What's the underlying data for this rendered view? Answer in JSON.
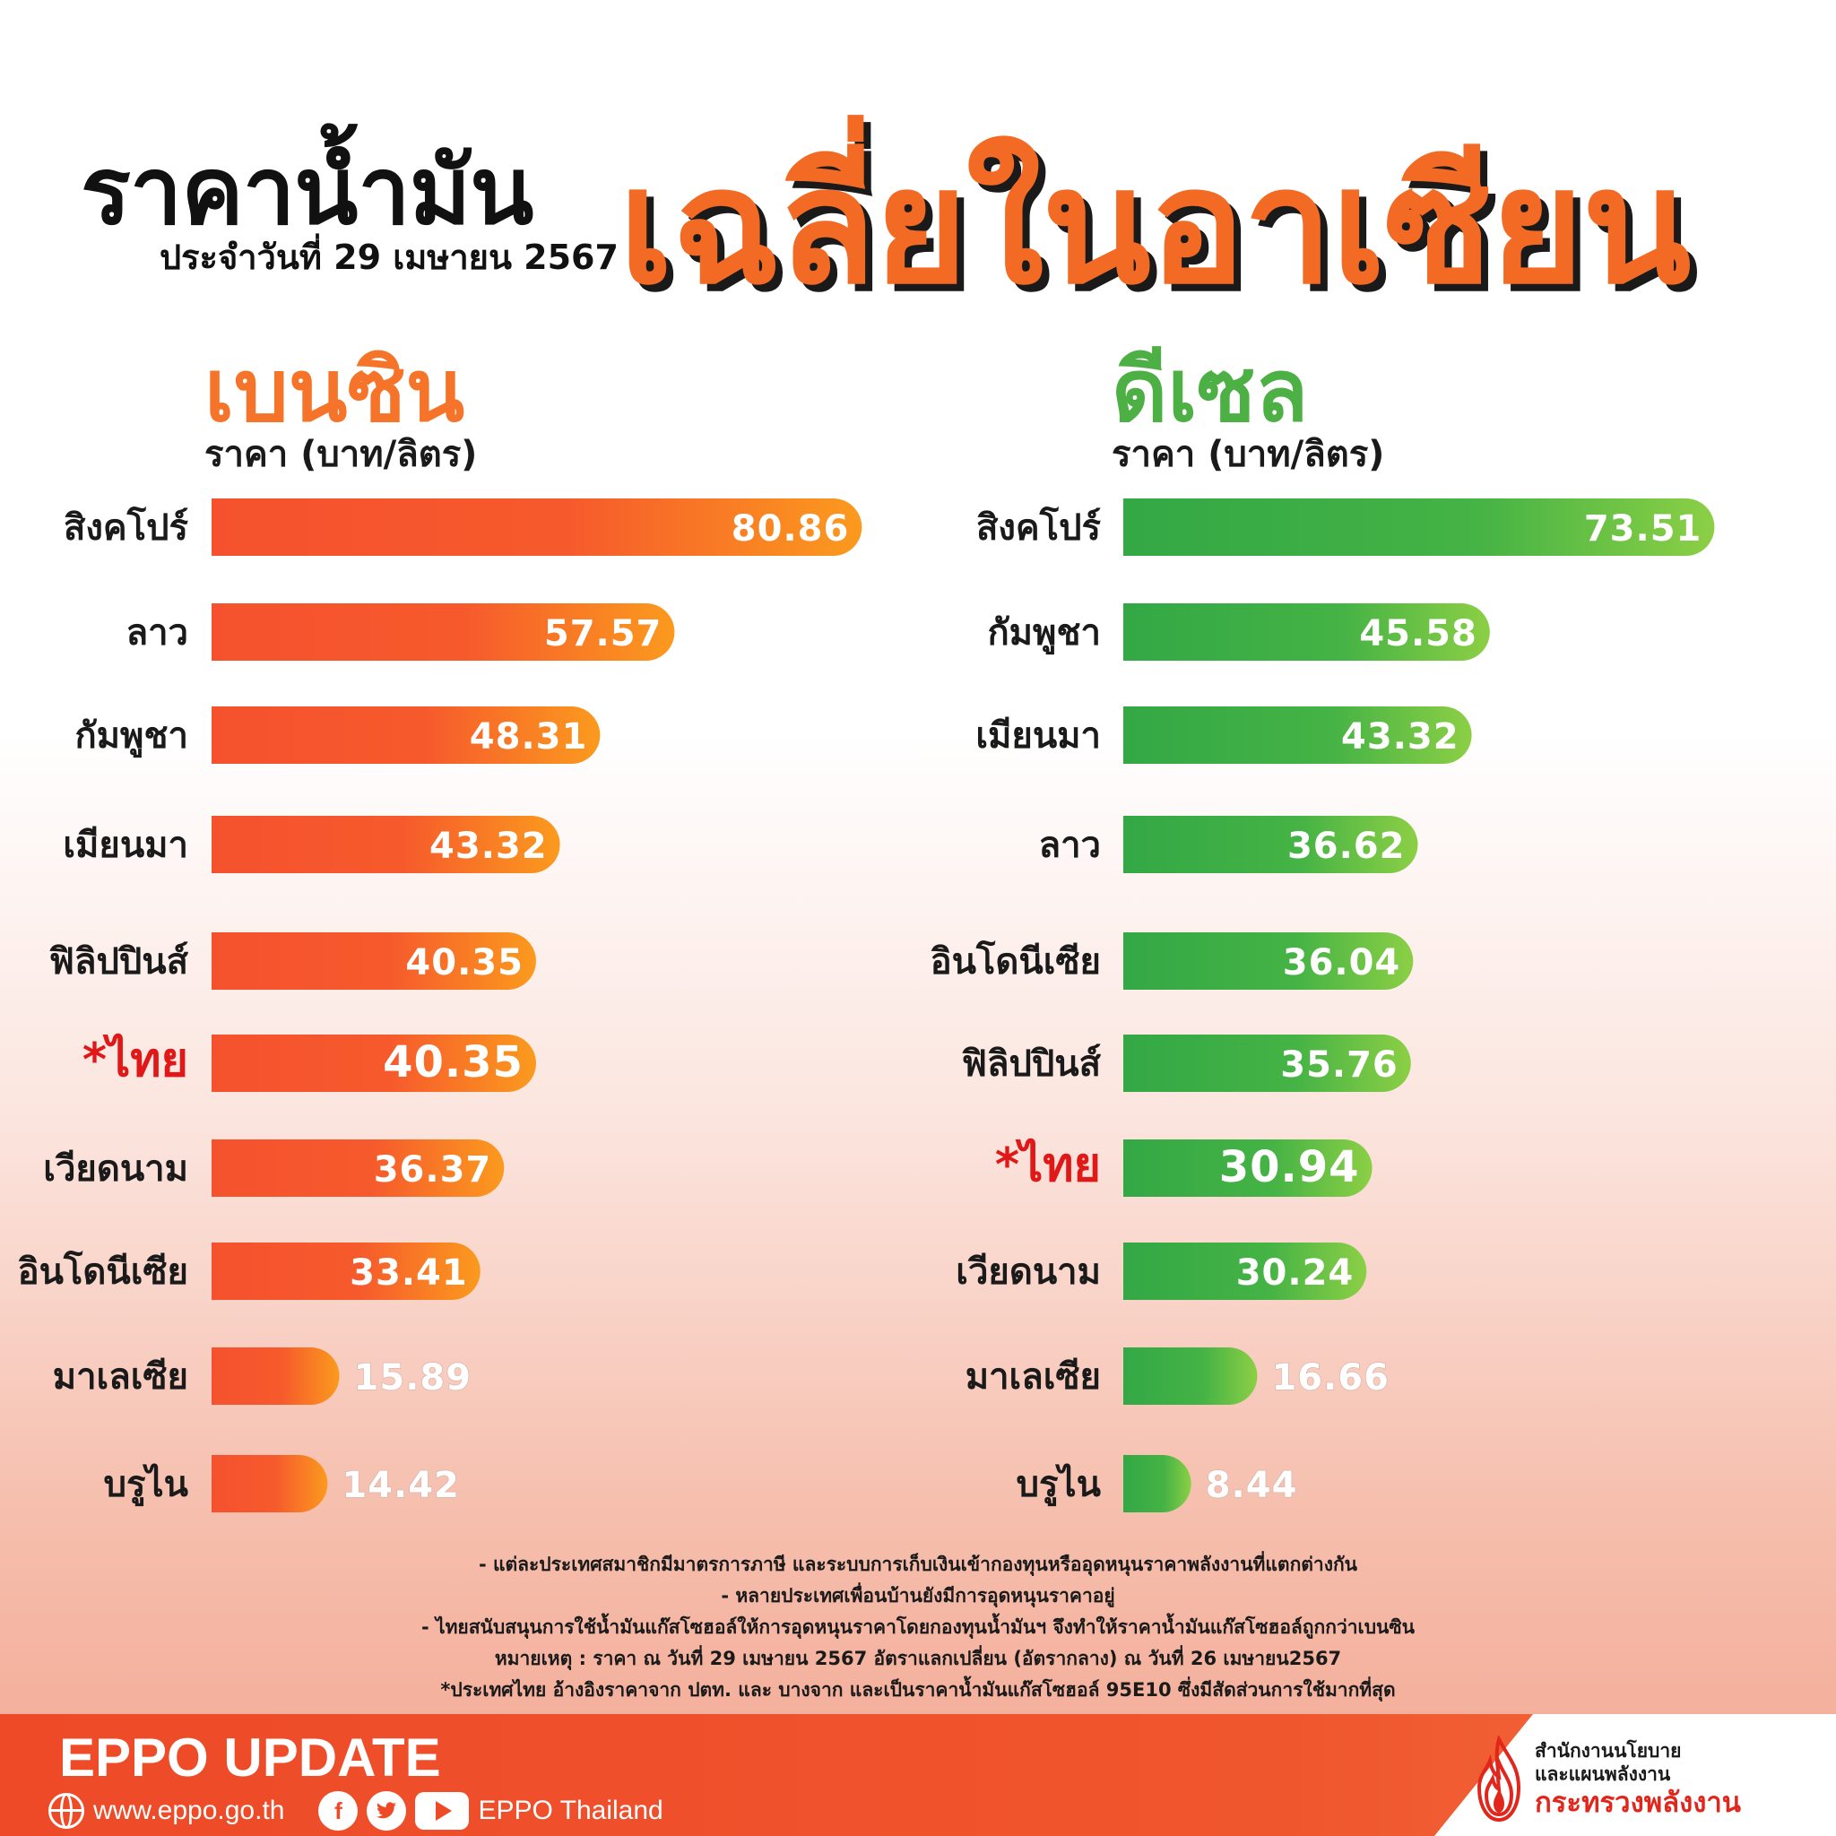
{
  "header": {
    "title_part1": "ราคาน้ำมัน",
    "title_part2": "เฉลี่ยในอาเซียน",
    "date": "ประจำวันที่ 29 เมษายน 2567"
  },
  "sections": {
    "petrol": {
      "title": "เบนซิน",
      "unit": "ราคา (บาท/ลิตร)"
    },
    "diesel": {
      "title": "ดีเซล",
      "unit": "ราคา (บาท/ลิตร)"
    }
  },
  "chart_data": [
    {
      "type": "bar",
      "orientation": "horizontal",
      "title": "เบนซิน",
      "ylabel": "ราคา (บาท/ลิตร)",
      "categories": [
        "สิงคโปร์",
        "ลาว",
        "กัมพูชา",
        "เมียนมา",
        "ฟิลิปปินส์",
        "*ไทย",
        "เวียดนาม",
        "อินโดนีเซีย",
        "มาเลเซีย",
        "บรูไน"
      ],
      "values": [
        80.86,
        57.57,
        48.31,
        43.32,
        40.35,
        40.35,
        36.37,
        33.41,
        15.89,
        14.42
      ],
      "value_labels": [
        "80.86",
        "57.57",
        "48.31",
        "43.32",
        "40.35",
        "40.35",
        "36.37",
        "33.41",
        "15.89",
        "14.42"
      ],
      "highlight": "*ไทย",
      "color": "#f5512e",
      "color_end": "#fb9a1e"
    },
    {
      "type": "bar",
      "orientation": "horizontal",
      "title": "ดีเซล",
      "ylabel": "ราคา (บาท/ลิตร)",
      "categories": [
        "สิงคโปร์",
        "กัมพูชา",
        "เมียนมา",
        "ลาว",
        "อินโดนีเซีย",
        "ฟิลิปปินส์",
        "*ไทย",
        "เวียดนาม",
        "มาเลเซีย",
        "บรูไน"
      ],
      "values": [
        73.51,
        45.58,
        43.32,
        36.62,
        36.04,
        35.76,
        30.94,
        30.24,
        16.66,
        8.44
      ],
      "value_labels": [
        "73.51",
        "45.58",
        "43.32",
        "36.62",
        "36.04",
        "35.76",
        "30.94",
        "30.24",
        "16.66",
        "8.44"
      ],
      "highlight": "*ไทย",
      "color": "#33a845",
      "color_end": "#8ccf45"
    }
  ],
  "notes": [
    "- แต่ละประเทศสมาชิกมีมาตรการภาษี และระบบการเก็บเงินเข้ากองทุนหรืออุดหนุนราคาพลังงานที่แตกต่างกัน",
    "- หลายประเทศเพื่อนบ้านยังมีการอุดหนุนราคาอยู่",
    "- ไทยสนับสนุนการใช้น้ำมันแก๊สโซฮอล์ให้การอุดหนุนราคาโดยกองทุนน้ำมันฯ จึงทำให้ราคาน้ำมันแก๊สโซฮอล์ถูกกว่าเบนซิน",
    "หมายเหตุ :   ราคา ณ วันที่ 29 เมษายน 2567 อัตราแลกเปลี่ยน (อัตรากลาง) ณ วันที่ 26 เมษายน2567",
    "*ประเทศไทย อ้างอิงราคาจาก ปตท. และ บางจาก และเป็นราคาน้ำมันแก๊สโซฮอล์ 95E10 ซึ่งมีสัดส่วนการใช้มากที่สุด"
  ],
  "footer": {
    "brand": "EPPO UPDATE",
    "website": "www.eppo.go.th",
    "social_name": "EPPO Thailand",
    "icons": [
      "globe-icon",
      "facebook-icon",
      "twitter-icon",
      "youtube-icon"
    ],
    "org_line1": "สำนักงานนโยบาย",
    "org_line2": "และแผนพลังงาน",
    "ministry": "กระทรวงพลังงาน"
  },
  "colors": {
    "accent_orange": "#f26a24",
    "petrol": "#f5512e",
    "diesel": "#33a845",
    "highlight_red": "#e11818",
    "footer_bar": "#ee4a28"
  }
}
